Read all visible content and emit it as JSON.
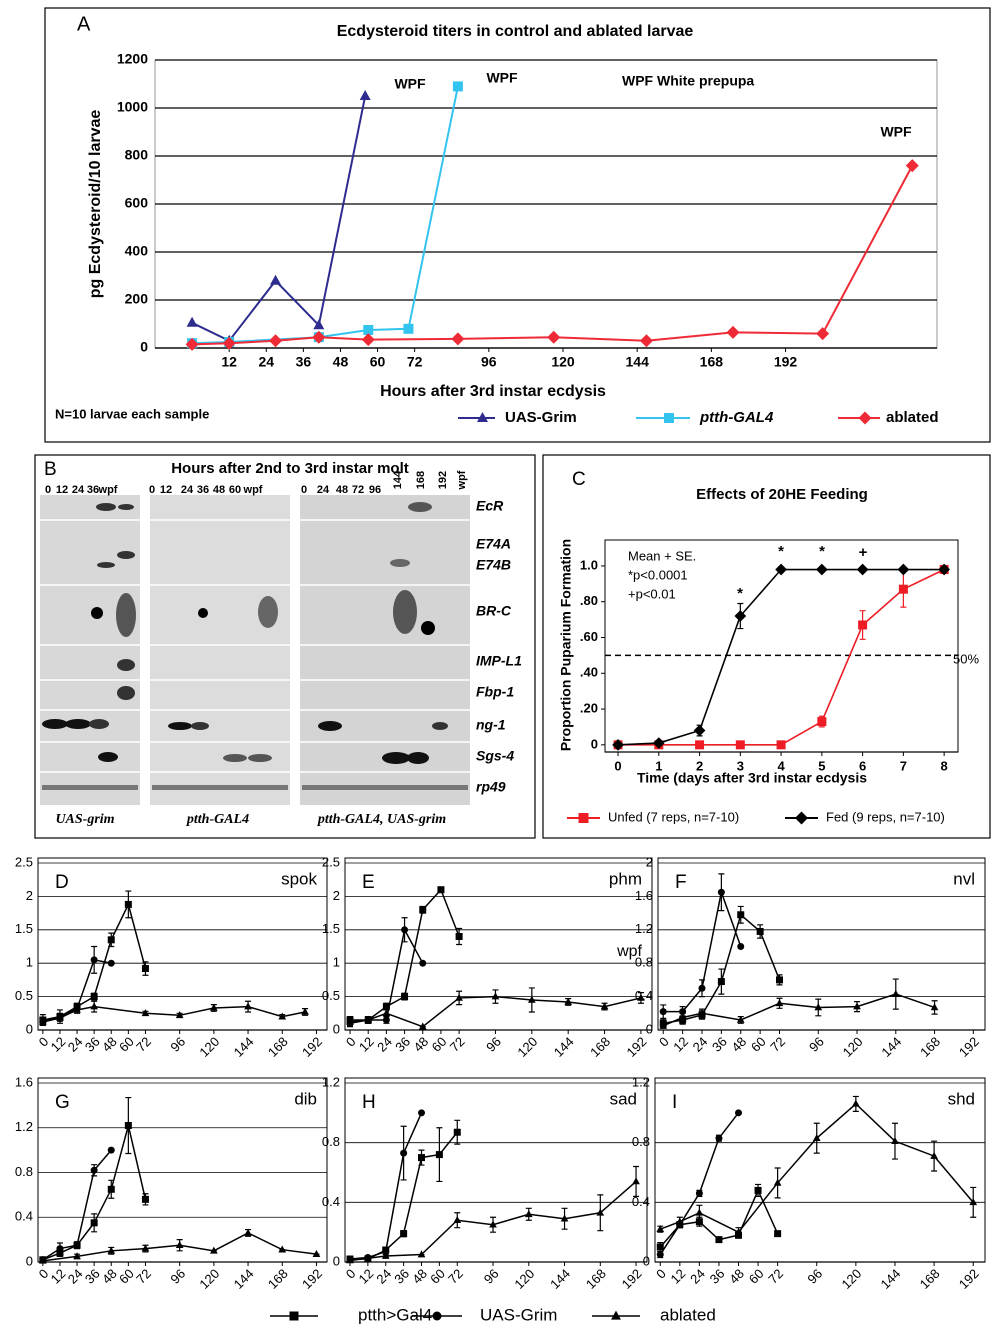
{
  "chart_data": [
    {
      "type": "line",
      "label": "A",
      "title": "Ecdysteroid titers in control and ablated larvae",
      "x_label": "Hours after 3rd instar ecdysis",
      "y_label": "pg Ecdysteroid/10 larvae",
      "xlim": [
        -12,
        241
      ],
      "ylim": [
        0,
        1200
      ],
      "xticks": [
        12,
        24,
        36,
        48,
        60,
        72,
        96,
        120,
        144,
        168,
        192
      ],
      "yticks": [
        0,
        200,
        400,
        600,
        800,
        1000,
        1200
      ],
      "grid": true,
      "annotations": [
        "WPF",
        "WPF",
        "WPF White prepupa",
        "WPF",
        "N=10 larvae each sample"
      ],
      "series": [
        {
          "name": "UAS-Grim",
          "color": "#2e2c8f",
          "marker": "triangle",
          "x": [
            0,
            12,
            27,
            41,
            56
          ],
          "values": [
            105,
            30,
            280,
            95,
            1050
          ]
        },
        {
          "name": "ptth-GAL4",
          "color": "#33c3ef",
          "marker": "square",
          "x": [
            0,
            12,
            41,
            57,
            70,
            86
          ],
          "values": [
            20,
            25,
            45,
            75,
            80,
            1090
          ]
        },
        {
          "name": "ablated",
          "color": "#ee2a36",
          "marker": "diamond",
          "x": [
            0,
            12,
            27,
            41,
            57,
            86,
            117,
            147,
            175,
            204,
            233
          ],
          "values": [
            15,
            20,
            30,
            45,
            35,
            38,
            45,
            30,
            65,
            60,
            760
          ]
        }
      ]
    },
    {
      "type": "line",
      "label": "C",
      "title": "Effects of 20HE Feeding",
      "x_label": "Time (days after 3rd instar ecdysis",
      "y_label": "Proportion Puparium Formation",
      "xlim": [
        -0.32,
        8.34
      ],
      "ylim": [
        -0.04,
        1.145
      ],
      "xticks": [
        0,
        1,
        2,
        3,
        4,
        5,
        6,
        7,
        8
      ],
      "yticks": [
        0,
        {
          "value": 0.2,
          "label": ".20"
        },
        {
          "value": 0.4,
          "label": ".40"
        },
        {
          "value": 0.6,
          "label": ".60"
        },
        {
          "value": 0.8,
          "label": ".80"
        },
        {
          "value": 1,
          "label": "1.0"
        }
      ],
      "grid": false,
      "reference_line": 0.5,
      "annotations": [
        "Mean + SE.",
        "*p<0.0001",
        "+p<0.01",
        "*",
        "*",
        "*",
        "+",
        "50%"
      ],
      "series": [
        {
          "name": "Unfed (7 reps, n=7-10)",
          "color": "#ee1c24",
          "marker": "square",
          "x": [
            0,
            1,
            2,
            3,
            4,
            5,
            6,
            7,
            8
          ],
          "values": [
            0,
            0,
            0,
            0,
            0,
            0.13,
            0.67,
            0.87,
            0.98
          ],
          "errors": [
            0,
            0,
            0,
            0,
            0,
            0.03,
            0.08,
            0.1,
            0.02
          ]
        },
        {
          "name": "Fed (9 reps, n=7-10)",
          "color": "#000000",
          "marker": "diamond",
          "x": [
            0,
            1,
            2,
            3,
            4,
            5,
            6,
            7,
            8
          ],
          "values": [
            0,
            0.01,
            0.08,
            0.72,
            0.98,
            0.98,
            0.98,
            0.98,
            0.98
          ],
          "errors": [
            0,
            0,
            0.03,
            0.07,
            0,
            0,
            0,
            0,
            0
          ]
        }
      ]
    },
    {
      "type": "line",
      "label": "D",
      "title": "spok",
      "xlim": [
        -2,
        198
      ],
      "ylim": [
        0,
        2.5
      ],
      "xticks": [
        0,
        12,
        24,
        36,
        48,
        60,
        72,
        96,
        120,
        144,
        168,
        192
      ],
      "yticks": [
        0,
        0.5,
        1,
        1.5,
        2,
        2.5
      ],
      "grid": true,
      "series": [
        {
          "marker": "square",
          "x": [
            0,
            12,
            24,
            36,
            48,
            60,
            72
          ],
          "values": [
            0.15,
            0.2,
            0.35,
            0.5,
            1.35,
            1.88,
            0.92
          ],
          "errors": [
            0.08,
            0.1,
            0.05,
            0.05,
            0.1,
            0.2,
            0.1
          ]
        },
        {
          "marker": "circle",
          "x": [
            0,
            12,
            24,
            36,
            48
          ],
          "values": [
            0.12,
            0.2,
            0.32,
            1.05,
            1.0
          ],
          "errors": [
            0.05,
            0.05,
            0.05,
            0.2,
            0
          ]
        },
        {
          "marker": "triangle",
          "x": [
            0,
            12,
            24,
            36,
            72,
            96,
            120,
            144,
            168,
            184
          ],
          "values": [
            0.12,
            0.18,
            0.3,
            0.35,
            0.25,
            0.22,
            0.33,
            0.35,
            0.2,
            0.27
          ],
          "errors": [
            0.05,
            0.05,
            0.05,
            0.08,
            0.03,
            0.03,
            0.05,
            0.08,
            0.03,
            0.05
          ]
        }
      ]
    },
    {
      "type": "line",
      "label": "E",
      "title": "phm",
      "annotations": [
        "wpf"
      ],
      "xlim": [
        -2,
        198
      ],
      "ylim": [
        0,
        2.5
      ],
      "xticks": [
        0,
        12,
        24,
        36,
        48,
        60,
        72,
        96,
        120,
        144,
        168,
        192
      ],
      "yticks": [
        0,
        0.5,
        1,
        1.5,
        2,
        2.5
      ],
      "grid": true,
      "series": [
        {
          "marker": "square",
          "x": [
            0,
            12,
            24,
            36,
            48,
            60,
            72
          ],
          "values": [
            0.15,
            0.15,
            0.35,
            0.5,
            1.8,
            2.1,
            1.4
          ],
          "errors": [
            0.05,
            0.05,
            0.05,
            0.05,
            0.05,
            0,
            0.12
          ]
        },
        {
          "marker": "circle",
          "x": [
            0,
            12,
            24,
            36,
            48
          ],
          "values": [
            0.1,
            0.15,
            0.15,
            1.5,
            1.0
          ],
          "errors": [
            0.05,
            0.05,
            0.05,
            0.18,
            0
          ]
        },
        {
          "marker": "triangle",
          "x": [
            0,
            12,
            24,
            48,
            72,
            96,
            120,
            144,
            168,
            192
          ],
          "values": [
            0.12,
            0.15,
            0.25,
            0.05,
            0.48,
            0.5,
            0.45,
            0.42,
            0.35,
            0.48
          ],
          "errors": [
            0.05,
            0.05,
            0.05,
            0,
            0.1,
            0.1,
            0.18,
            0.05,
            0.05,
            0.08
          ]
        }
      ]
    },
    {
      "type": "line",
      "label": "F",
      "title": "nvl",
      "xlim": [
        -2,
        198
      ],
      "ylim": [
        0,
        2
      ],
      "xticks": [
        0,
        12,
        24,
        36,
        48,
        60,
        72,
        96,
        120,
        144,
        168,
        192
      ],
      "yticks": [
        0,
        0.4,
        0.8,
        1.2,
        1.6,
        2
      ],
      "grid": true,
      "series": [
        {
          "marker": "square",
          "x": [
            0,
            12,
            24,
            36,
            48,
            60,
            72
          ],
          "values": [
            0.08,
            0.12,
            0.18,
            0.58,
            1.38,
            1.18,
            0.6
          ],
          "errors": [
            0.05,
            0.05,
            0.05,
            0.15,
            0.1,
            0.08,
            0.06
          ]
        },
        {
          "marker": "circle",
          "x": [
            0,
            12,
            24,
            36,
            48
          ],
          "values": [
            0.22,
            0.22,
            0.5,
            1.65,
            1.0
          ],
          "errors": [
            0.08,
            0.06,
            0.1,
            0.22,
            0
          ]
        },
        {
          "marker": "triangle",
          "x": [
            0,
            12,
            24,
            48,
            72,
            96,
            120,
            144,
            168
          ],
          "values": [
            0.05,
            0.15,
            0.2,
            0.12,
            0.32,
            0.27,
            0.28,
            0.43,
            0.27
          ],
          "errors": [
            0.03,
            0.05,
            0.05,
            0.04,
            0.06,
            0.1,
            0.06,
            0.18,
            0.08
          ]
        }
      ]
    },
    {
      "type": "line",
      "label": "G",
      "title": "dib",
      "xlim": [
        -2,
        198
      ],
      "ylim": [
        0,
        1.6
      ],
      "xticks": [
        0,
        12,
        24,
        36,
        48,
        60,
        72,
        96,
        120,
        144,
        168,
        192
      ],
      "yticks": [
        0,
        0.4,
        0.8,
        1.2,
        1.6
      ],
      "grid": true,
      "series": [
        {
          "marker": "square",
          "x": [
            0,
            12,
            24,
            36,
            48,
            60,
            72
          ],
          "values": [
            0.02,
            0.08,
            0.15,
            0.35,
            0.65,
            1.22,
            0.56
          ],
          "errors": [
            0.02,
            0.03,
            0.03,
            0.08,
            0.08,
            0.25,
            0.05
          ]
        },
        {
          "marker": "circle",
          "x": [
            0,
            12,
            24,
            36,
            48
          ],
          "values": [
            0.02,
            0.12,
            0.15,
            0.82,
            1.0
          ],
          "errors": [
            0.02,
            0.05,
            0.03,
            0.05,
            0
          ]
        },
        {
          "marker": "triangle",
          "x": [
            0,
            24,
            48,
            72,
            96,
            120,
            144,
            168,
            192
          ],
          "values": [
            0.01,
            0.05,
            0.1,
            0.12,
            0.15,
            0.1,
            0.26,
            0.11,
            0.07
          ],
          "errors": [
            0,
            0.02,
            0.03,
            0.03,
            0.05,
            0,
            0.03,
            0,
            0
          ]
        }
      ]
    },
    {
      "type": "line",
      "label": "H",
      "title": "sad",
      "xlim": [
        -2,
        198
      ],
      "ylim": [
        0,
        1.2
      ],
      "xticks": [
        0,
        12,
        24,
        36,
        48,
        60,
        72,
        96,
        120,
        144,
        168,
        192
      ],
      "yticks": [
        0,
        0.4,
        0.8,
        1.2
      ],
      "grid": true,
      "series": [
        {
          "marker": "square",
          "x": [
            0,
            12,
            24,
            36,
            48,
            60,
            72
          ],
          "values": [
            0.02,
            0.02,
            0.08,
            0.19,
            0.7,
            0.72,
            0.87
          ],
          "errors": [
            0.01,
            0.01,
            0.02,
            0.02,
            0.05,
            0.18,
            0.08
          ]
        },
        {
          "marker": "circle",
          "x": [
            0,
            12,
            24,
            36,
            48
          ],
          "values": [
            0.02,
            0.03,
            0.07,
            0.73,
            1.0
          ],
          "errors": [
            0.01,
            0.01,
            0.02,
            0.18,
            0
          ]
        },
        {
          "marker": "triangle",
          "x": [
            0,
            24,
            48,
            72,
            96,
            120,
            144,
            168,
            192
          ],
          "values": [
            0.01,
            0.04,
            0.05,
            0.28,
            0.25,
            0.32,
            0.29,
            0.33,
            0.54
          ],
          "errors": [
            0,
            0,
            0,
            0.05,
            0.05,
            0.04,
            0.07,
            0.12,
            0.1
          ]
        }
      ]
    },
    {
      "type": "line",
      "label": "I",
      "title": "shd",
      "xlim": [
        -2,
        198
      ],
      "ylim": [
        0,
        1.2
      ],
      "xticks": [
        0,
        12,
        24,
        36,
        48,
        60,
        72,
        96,
        120,
        144,
        168,
        192
      ],
      "yticks": [
        0,
        0.4,
        0.8,
        1.2
      ],
      "grid": true,
      "series": [
        {
          "marker": "square",
          "x": [
            0,
            12,
            24,
            36,
            48,
            60,
            72
          ],
          "values": [
            0.1,
            0.25,
            0.27,
            0.15,
            0.18,
            0.48,
            0.19
          ],
          "errors": [
            0.03,
            0.02,
            0.03,
            0.01,
            0.02,
            0.04,
            0
          ]
        },
        {
          "marker": "circle",
          "x": [
            0,
            12,
            24,
            36,
            48
          ],
          "values": [
            0.05,
            0.25,
            0.46,
            0.83,
            1.0
          ],
          "errors": [
            0.02,
            0.02,
            0.02,
            0.02,
            0
          ]
        },
        {
          "marker": "triangle",
          "x": [
            0,
            12,
            24,
            48,
            72,
            96,
            120,
            144,
            168,
            192
          ],
          "values": [
            0.22,
            0.27,
            0.33,
            0.2,
            0.53,
            0.83,
            1.06,
            0.81,
            0.71,
            0.4
          ],
          "errors": [
            0.02,
            0.03,
            0.05,
            0.03,
            0.1,
            0.1,
            0.05,
            0.12,
            0.1,
            0.1
          ]
        }
      ]
    }
  ],
  "legend": [
    {
      "name": "ptth>Gal4",
      "marker": "square"
    },
    {
      "name": "UAS-Grim",
      "marker": "circle"
    },
    {
      "name": "ablated",
      "marker": "triangle"
    }
  ],
  "panel_b": {
    "label": "B",
    "title": "Hours after 2nd to 3rd instar molt",
    "lanes": [
      [
        "0",
        "12",
        "24",
        "36",
        "wpf"
      ],
      [
        "0",
        "12",
        "24",
        "36",
        "48",
        "60",
        "wpf"
      ],
      [
        "0",
        "24",
        "48",
        "72",
        "96",
        "144",
        "168",
        "192",
        "wpf"
      ]
    ],
    "genes": [
      "EcR",
      "E74A",
      "E74B",
      "BR-C",
      "IMP-L1",
      "Fbp-1",
      "ng-1",
      "Sgs-4",
      "rp49"
    ],
    "genotypes": [
      "UAS-grim",
      "ptth-GAL4",
      "ptth-GAL4, UAS-grim"
    ]
  }
}
